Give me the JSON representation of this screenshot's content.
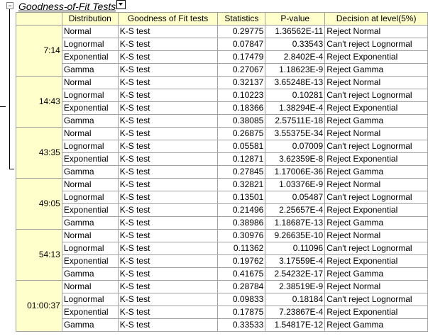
{
  "report": {
    "title": "Goodness-of-Fit Tests",
    "columns": [
      "Distribution",
      "Goodness of Fit tests",
      "Statistics",
      "P-value",
      "Decision at level(5%)"
    ],
    "groups": [
      {
        "label": "7:14",
        "rows": [
          {
            "dist": "Normal",
            "test": "K-S test",
            "stat": "0.29775",
            "p": "1.36562E-11",
            "decision": "Reject Normal"
          },
          {
            "dist": "Lognormal",
            "test": "K-S test",
            "stat": "0.07847",
            "p": "0.33543",
            "decision": "Can't reject Lognormal"
          },
          {
            "dist": "Exponential",
            "test": "K-S test",
            "stat": "0.17479",
            "p": "2.8402E-4",
            "decision": "Reject Exponential"
          },
          {
            "dist": "Gamma",
            "test": "K-S test",
            "stat": "0.27067",
            "p": "1.18623E-9",
            "decision": "Reject Gamma"
          }
        ]
      },
      {
        "label": "14:43",
        "rows": [
          {
            "dist": "Normal",
            "test": "K-S test",
            "stat": "0.32137",
            "p": "3.65248E-13",
            "decision": "Reject Normal"
          },
          {
            "dist": "Lognormal",
            "test": "K-S test",
            "stat": "0.10223",
            "p": "0.10281",
            "decision": "Can't reject Lognormal"
          },
          {
            "dist": "Exponential",
            "test": "K-S test",
            "stat": "0.18366",
            "p": "1.38294E-4",
            "decision": "Reject Exponential"
          },
          {
            "dist": "Gamma",
            "test": "K-S test",
            "stat": "0.38085",
            "p": "2.57511E-18",
            "decision": "Reject Gamma"
          }
        ]
      },
      {
        "label": "43:35",
        "rows": [
          {
            "dist": "Normal",
            "test": "K-S test",
            "stat": "0.26875",
            "p": "3.55375E-34",
            "decision": "Reject Normal"
          },
          {
            "dist": "Lognormal",
            "test": "K-S test",
            "stat": "0.05581",
            "p": "0.07009",
            "decision": "Can't reject Lognormal"
          },
          {
            "dist": "Exponential",
            "test": "K-S test",
            "stat": "0.12871",
            "p": "3.62359E-8",
            "decision": "Reject Exponential"
          },
          {
            "dist": "Gamma",
            "test": "K-S test",
            "stat": "0.27845",
            "p": "1.17006E-36",
            "decision": "Reject Gamma"
          }
        ]
      },
      {
        "label": "49:05",
        "rows": [
          {
            "dist": "Normal",
            "test": "K-S test",
            "stat": "0.32821",
            "p": "1.03376E-9",
            "decision": "Reject Normal"
          },
          {
            "dist": "Lognormal",
            "test": "K-S test",
            "stat": "0.13501",
            "p": "0.05487",
            "decision": "Can't reject Lognormal"
          },
          {
            "dist": "Exponential",
            "test": "K-S test",
            "stat": "0.21496",
            "p": "2.25657E-4",
            "decision": "Reject Exponential"
          },
          {
            "dist": "Gamma",
            "test": "K-S test",
            "stat": "0.38986",
            "p": "1.18687E-13",
            "decision": "Reject Gamma"
          }
        ]
      },
      {
        "label": "54:13",
        "rows": [
          {
            "dist": "Normal",
            "test": "K-S test",
            "stat": "0.30976",
            "p": "9.26635E-10",
            "decision": "Reject Normal"
          },
          {
            "dist": "Lognormal",
            "test": "K-S test",
            "stat": "0.11362",
            "p": "0.11096",
            "decision": "Can't reject Lognormal"
          },
          {
            "dist": "Exponential",
            "test": "K-S test",
            "stat": "0.19762",
            "p": "3.17559E-4",
            "decision": "Reject Exponential"
          },
          {
            "dist": "Gamma",
            "test": "K-S test",
            "stat": "0.41675",
            "p": "2.54232E-17",
            "decision": "Reject Gamma"
          }
        ]
      },
      {
        "label": "01:00:37",
        "rows": [
          {
            "dist": "Normal",
            "test": "K-S test",
            "stat": "0.28784",
            "p": "2.38519E-9",
            "decision": "Reject Normal"
          },
          {
            "dist": "Lognormal",
            "test": "K-S test",
            "stat": "0.09833",
            "p": "0.18184",
            "decision": "Can't reject Lognormal"
          },
          {
            "dist": "Exponential",
            "test": "K-S test",
            "stat": "0.17875",
            "p": "7.23867E-4",
            "decision": "Reject Exponential"
          },
          {
            "dist": "Gamma",
            "test": "K-S test",
            "stat": "0.33533",
            "p": "1.54817E-12",
            "decision": "Reject Gamma"
          }
        ]
      }
    ]
  },
  "colors": {
    "header_bg": "#ffffcc",
    "grid": "#a0a0a0"
  },
  "icons": {
    "collapse": "minus-box-icon",
    "dropdown": "dropdown-arrow-icon"
  }
}
